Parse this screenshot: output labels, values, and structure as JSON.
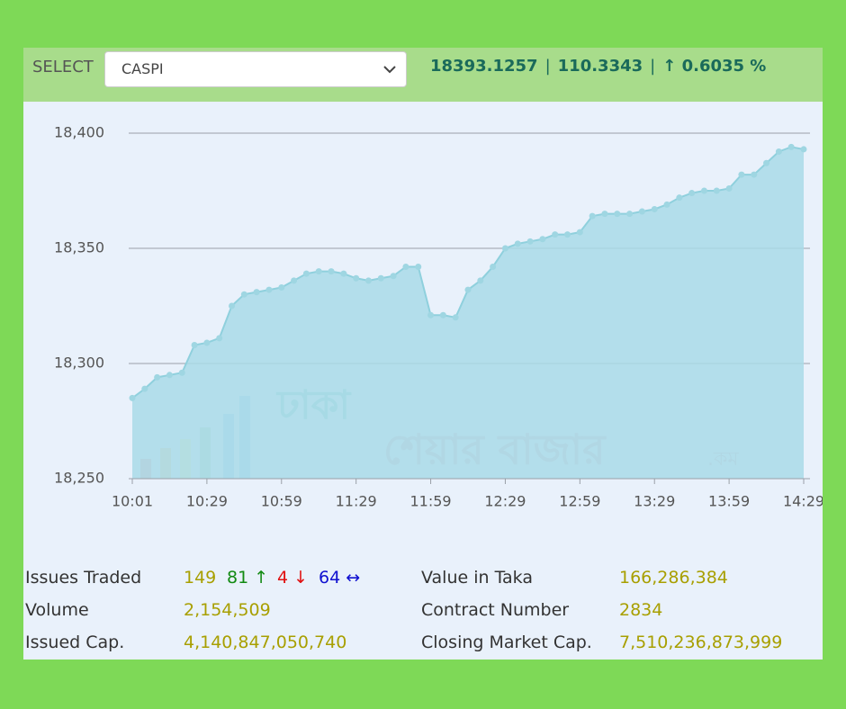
{
  "header": {
    "select_label": "SELECT",
    "selected": "CASPI",
    "index_value": "18393.1257",
    "change": "110.3343",
    "change_pct": "↑ 0.6035 %"
  },
  "chart_data": {
    "type": "area",
    "categories": [
      "10:01",
      null,
      null,
      null,
      null,
      null,
      "10:29",
      null,
      null,
      null,
      null,
      null,
      "10:59",
      null,
      null,
      null,
      null,
      null,
      "11:29",
      null,
      null,
      null,
      null,
      null,
      "11:59",
      null,
      null,
      null,
      null,
      null,
      "12:29",
      null,
      null,
      null,
      null,
      null,
      "12:59",
      null,
      null,
      null,
      null,
      null,
      "13:29",
      null,
      null,
      null,
      null,
      null,
      "13:59",
      null,
      null,
      null,
      null,
      null,
      "14:29"
    ],
    "values": [
      18285,
      18289,
      18294,
      18295,
      18296,
      18308,
      18309,
      18311,
      18325,
      18330,
      18331,
      18332,
      18333,
      18336,
      18339,
      18340,
      18340,
      18339,
      18337,
      18336,
      18337,
      18338,
      18342,
      18342,
      18321,
      18321,
      18320,
      18332,
      18336,
      18342,
      18350,
      18352,
      18353,
      18354,
      18356,
      18356,
      18357,
      18364,
      18365,
      18365,
      18365,
      18366,
      18367,
      18369,
      18372,
      18374,
      18375,
      18375,
      18376,
      18382,
      18382,
      18387,
      18392,
      18394,
      18393
    ],
    "color": "#a9dbe8",
    "ylim": [
      18250,
      18400
    ],
    "yticks": [
      {
        "value": 18250,
        "label": "18,250"
      },
      {
        "value": 18300,
        "label": "18,300"
      },
      {
        "value": 18350,
        "label": "18,350"
      },
      {
        "value": 18400,
        "label": "18,400"
      }
    ],
    "grid": true,
    "markers": true
  },
  "watermark": {
    "line1": "ঢাকা",
    "line2": "শেয়ার বাজার",
    "suffix": ".কম"
  },
  "stats": {
    "issues_traded": {
      "label": "Issues Traded",
      "total": "149",
      "up": "81 ↑",
      "down": "4 ↓",
      "unchanged": "64 ↔"
    },
    "volume": {
      "label": "Volume",
      "value": "2,154,509"
    },
    "issued_cap": {
      "label": "Issued Cap.",
      "value": "4,140,847,050,740"
    },
    "value_in_taka": {
      "label": "Value in Taka",
      "value": "166,286,384"
    },
    "contract_number": {
      "label": "Contract Number",
      "value": "2834"
    },
    "closing_market_cap": {
      "label": "Closing Market Cap.",
      "value": "7,510,236,873,999"
    }
  }
}
